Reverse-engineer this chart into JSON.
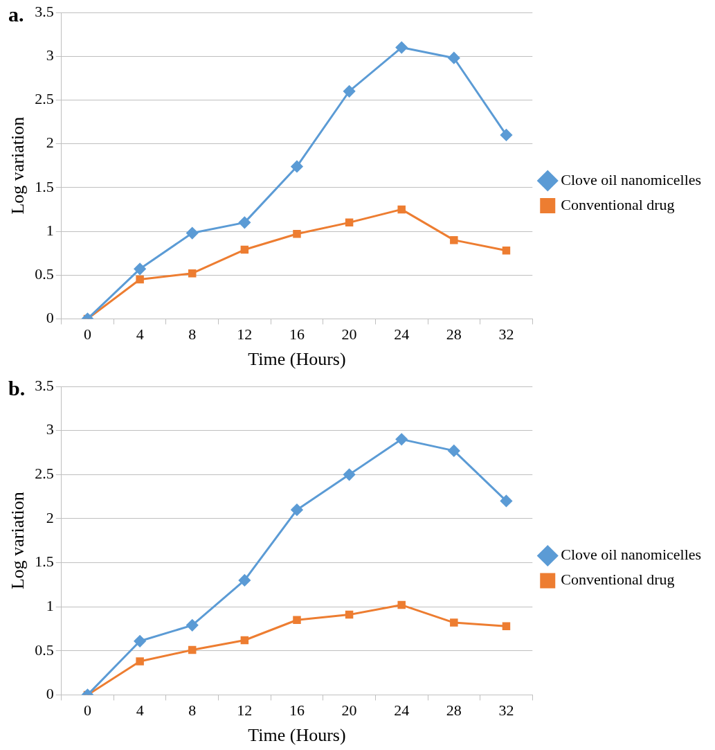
{
  "chart_data": [
    {
      "type": "line",
      "title": "a.",
      "xlabel": "Time (Hours)",
      "ylabel": "Log variation",
      "categories": [
        "0",
        "4",
        "8",
        "12",
        "16",
        "20",
        "24",
        "28",
        "32"
      ],
      "series": [
        {
          "name": "Clove oil nanomicelles",
          "color": "#5b9bd5",
          "marker": "diamond",
          "values": [
            0,
            0.57,
            0.98,
            1.1,
            1.74,
            2.6,
            3.1,
            2.98,
            2.1
          ]
        },
        {
          "name": "Conventional drug",
          "color": "#ed7d31",
          "marker": "square",
          "values": [
            0,
            0.45,
            0.52,
            0.79,
            0.97,
            1.1,
            1.25,
            0.9,
            0.78
          ]
        }
      ],
      "ylim": [
        0,
        3.5
      ],
      "yticks": [
        0,
        0.5,
        1,
        1.5,
        2,
        2.5,
        3,
        3.5
      ],
      "grid": "y",
      "legend": "right",
      "line_style": "solid"
    },
    {
      "type": "line",
      "title": "b.",
      "xlabel": "Time (Hours)",
      "ylabel": "Log variation",
      "categories": [
        "0",
        "4",
        "8",
        "12",
        "16",
        "20",
        "24",
        "28",
        "32"
      ],
      "series": [
        {
          "name": "Clove oil nanomicelles",
          "color": "#5b9bd5",
          "marker": "diamond",
          "values": [
            0,
            0.61,
            0.79,
            1.3,
            2.1,
            2.5,
            2.9,
            2.77,
            2.2
          ]
        },
        {
          "name": "Conventional drug",
          "color": "#ed7d31",
          "marker": "square",
          "values": [
            0,
            0.38,
            0.51,
            0.62,
            0.85,
            0.91,
            1.02,
            0.82,
            0.78
          ]
        }
      ],
      "ylim": [
        0,
        3.5
      ],
      "yticks": [
        0,
        0.5,
        1,
        1.5,
        2,
        2.5,
        3,
        3.5
      ],
      "grid": "y",
      "legend": "right",
      "line_style": "solid"
    }
  ]
}
